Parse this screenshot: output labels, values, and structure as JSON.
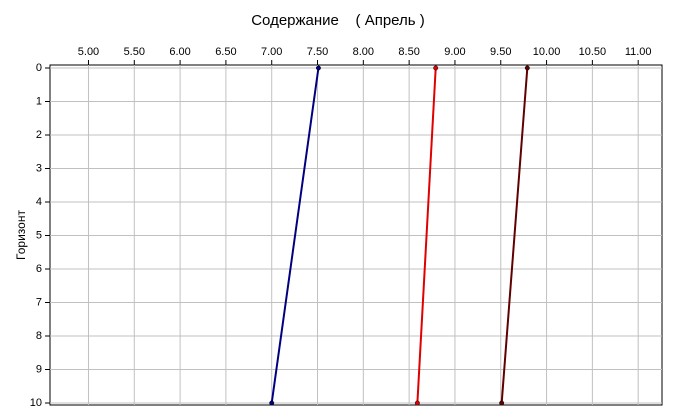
{
  "chart_data": {
    "type": "line",
    "title": "Содержание    ( Апрель )",
    "y_label": "Горизонт",
    "y": [
      0,
      10
    ],
    "series": [
      {
        "color": "#000080",
        "values": [
          7.51,
          7.0
        ]
      },
      {
        "color": "#e00000",
        "values": [
          8.79,
          8.59
        ]
      },
      {
        "color": "#600000",
        "values": [
          9.79,
          9.51
        ]
      }
    ],
    "xlim": [
      4.58,
      11.26
    ],
    "xticks": [
      {
        "value": 5,
        "label": "5.00"
      },
      {
        "value": 5.5,
        "label": "5.50"
      },
      {
        "value": 6,
        "label": "6.00"
      },
      {
        "value": 6.5,
        "label": "6.50"
      },
      {
        "value": 7,
        "label": "7.00"
      },
      {
        "value": 7.5,
        "label": "7.50"
      },
      {
        "value": 8,
        "label": "8.00"
      },
      {
        "value": 8.5,
        "label": "8.50"
      },
      {
        "value": 9,
        "label": "9.00"
      },
      {
        "value": 9.5,
        "label": "9.50"
      },
      {
        "value": 10,
        "label": "10.00"
      },
      {
        "value": 10.5,
        "label": "10.50"
      },
      {
        "value": 11,
        "label": "11.00"
      }
    ],
    "ylim": [
      0,
      10
    ],
    "yticks": [
      0,
      1,
      2,
      3,
      4,
      5,
      6,
      7,
      8,
      9,
      10
    ],
    "inverted_y": true,
    "grid": true
  }
}
